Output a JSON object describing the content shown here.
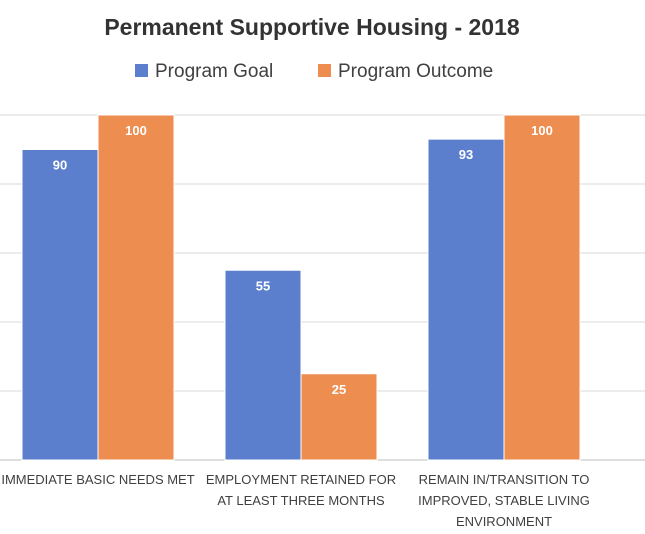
{
  "chart_data": {
    "type": "bar",
    "title": "Permanent Supportive Housing - 2018",
    "categories": [
      [
        "IMMEDIATE BASIC NEEDS MET"
      ],
      [
        "EMPLOYMENT RETAINED FOR",
        "AT LEAST THREE MONTHS"
      ],
      [
        "REMAIN IN/TRANSITION TO",
        "IMPROVED, STABLE LIVING",
        "ENVIRONMENT"
      ]
    ],
    "series": [
      {
        "name": "Program Goal",
        "values": [
          90,
          55,
          93
        ],
        "color": "#5b7fcc"
      },
      {
        "name": "Program Outcome",
        "values": [
          100,
          25,
          100
        ],
        "color": "#ed8d4f"
      }
    ],
    "ylim": [
      0,
      100
    ],
    "y_grid_step": 20,
    "grid": true,
    "legend_position": "top",
    "data_labels": true
  }
}
